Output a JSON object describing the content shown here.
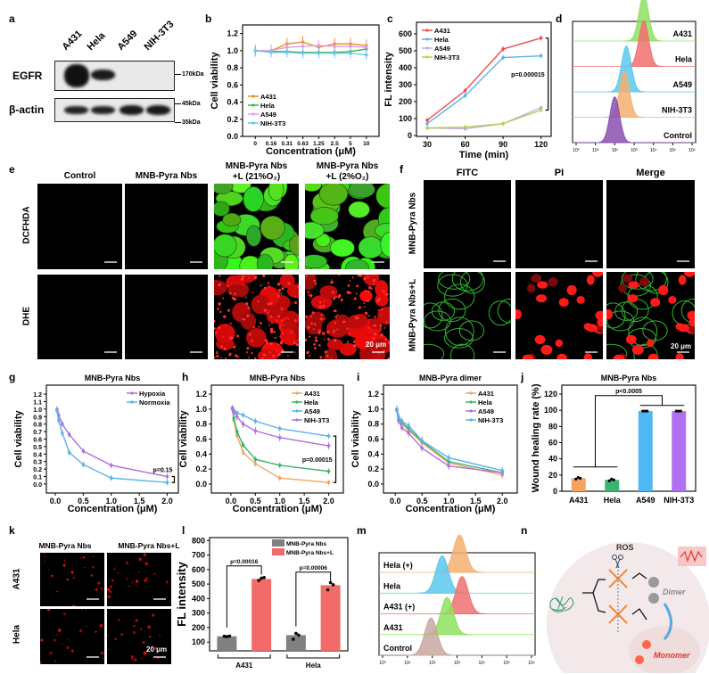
{
  "panel_labels": {
    "a": "a",
    "b": "b",
    "c": "c",
    "d": "d",
    "e": "e",
    "f": "f",
    "g": "g",
    "h": "h",
    "i": "i",
    "j": "j",
    "k": "k",
    "l": "l",
    "m": "m",
    "n": "n"
  },
  "blot": {
    "lanes": [
      "A431",
      "Hela",
      "A549",
      "NIH-3T3"
    ],
    "rows": [
      "EGFR",
      "β-actin"
    ],
    "markers": [
      "170kDa",
      "45kDa",
      "35kDa"
    ]
  },
  "ros_imaging": {
    "columns": [
      "Control",
      "MNB-Pyra Nbs",
      "MNB-Pyra Nbs\n+L (21%O₂)",
      "MNB-Pyra Nbs\n+L (2%O₂)"
    ],
    "rows": [
      "DCFHDA",
      "DHE"
    ],
    "scale_bar": "20 μm"
  },
  "membrane_imaging": {
    "columns": [
      "FITC",
      "PI",
      "Merge"
    ],
    "rows": [
      "MNB-Pyra Nbs",
      "MNB-Pyra Nbs+L"
    ],
    "scale_bar": "20 μm"
  },
  "cell_imaging": {
    "columns": [
      "MNB-Pyra Nbs",
      "MNB-Pyra Nbs+L"
    ],
    "rows": [
      "A431",
      "Hela"
    ],
    "scale_bar": "20 μm"
  },
  "schematic": {
    "ros": "ROS",
    "dimer": "Dimer",
    "monomer": "Monomer",
    "colors": {
      "ros": "#333333",
      "dimer": "#8a8a8a",
      "monomer": "#e03a2a"
    }
  },
  "chart_data": [
    {
      "panel": "b",
      "type": "line",
      "title": "",
      "xlabel": "Concentration (μM)",
      "ylabel": "Cell viability",
      "categories": [
        "0",
        "0.16",
        "0.31",
        "0.63",
        "1.25",
        "2.5",
        "5",
        "10"
      ],
      "ylim": [
        0,
        1.3
      ],
      "yticks": [
        0,
        0.2,
        0.4,
        0.6,
        0.8,
        1.0,
        1.2
      ],
      "ydec": 1,
      "legend": "bottom-left",
      "series": [
        {
          "name": "A431",
          "color": "#f08a24",
          "values": [
            1.0,
            1.0,
            1.08,
            1.1,
            1.04,
            1.08,
            1.08,
            1.06
          ],
          "err": 0.07
        },
        {
          "name": "Hela",
          "color": "#3cb44b",
          "values": [
            1.0,
            0.99,
            0.99,
            0.98,
            0.98,
            0.98,
            0.99,
            1.02
          ],
          "err": 0.04
        },
        {
          "name": "A549",
          "color": "#dda0e8",
          "values": [
            1.0,
            1.0,
            1.04,
            1.05,
            1.06,
            1.05,
            1.05,
            1.04
          ],
          "err": 0.06
        },
        {
          "name": "NIH-3T3",
          "color": "#6ec6ee",
          "values": [
            1.0,
            0.98,
            0.98,
            0.97,
            0.97,
            0.97,
            0.97,
            0.95
          ],
          "err": 0.06
        }
      ]
    },
    {
      "panel": "c",
      "type": "line",
      "title": "",
      "xlabel": "Time (min)",
      "ylabel": "FL intensity",
      "x": [
        30,
        60,
        90,
        120
      ],
      "xlim": [
        21.5,
        128
      ],
      "xticks": [
        30,
        60,
        90,
        120
      ],
      "ylim": [
        -5,
        668
      ],
      "yticks": [
        0,
        100,
        200,
        300,
        400,
        500,
        600
      ],
      "ydec": 0,
      "legend": "top-left",
      "series": [
        {
          "name": "A431",
          "color": "#e8504f",
          "values": [
            90,
            265,
            510,
            575
          ],
          "err": 15
        },
        {
          "name": "Hela",
          "color": "#5ab4e8",
          "values": [
            70,
            235,
            460,
            470
          ],
          "err": 15
        },
        {
          "name": "A549",
          "color": "#c8a8ec",
          "values": [
            45,
            40,
            70,
            165
          ],
          "err": 12
        },
        {
          "name": "NIH-3T3",
          "color": "#b5d24a",
          "values": [
            45,
            50,
            70,
            150
          ],
          "err": 12
        }
      ],
      "annotation": {
        "text": "p=0.000015",
        "between": [
          0,
          3
        ]
      }
    },
    {
      "panel": "d",
      "type": "histogram",
      "xlim_log10": [
        0,
        6
      ],
      "tracks": [
        {
          "name": "A431",
          "color": "#8fe060",
          "peak_log10": 3.5
        },
        {
          "name": "Hela",
          "color": "#f07070",
          "peak_log10": 3.5
        },
        {
          "name": "A549",
          "color": "#5cc8ee",
          "peak_log10": 2.6
        },
        {
          "name": "NIH-3T3",
          "color": "#f5b070",
          "peak_log10": 2.5
        },
        {
          "name": "Control",
          "color": "#8a50b0",
          "peak_log10": 2.0
        }
      ]
    },
    {
      "panel": "g",
      "type": "line",
      "title": "MNB-Pyra Nbs",
      "xlabel": "Concentration (μM)",
      "ylabel": "Cell viability",
      "x": [
        0.03,
        0.06,
        0.125,
        0.25,
        0.5,
        1,
        2
      ],
      "xlim": [
        -0.16,
        2.2
      ],
      "xticks": [
        0,
        0.5,
        1.0,
        1.5,
        2.0
      ],
      "ylim": [
        -0.12,
        1.32
      ],
      "yticks": [
        0,
        0.1,
        0.2,
        0.3,
        0.4,
        0.5,
        0.6,
        0.7,
        0.8,
        0.9,
        1.0,
        1.1,
        1.2
      ],
      "ydec": 1,
      "legend": "top-right",
      "series": [
        {
          "name": "Hypoxia",
          "color": "#b070e0",
          "values": [
            1.0,
            0.92,
            0.8,
            0.66,
            0.44,
            0.25,
            0.1
          ],
          "err": 0.04
        },
        {
          "name": "Normoxia",
          "color": "#5ab4e8",
          "values": [
            0.98,
            0.85,
            0.68,
            0.42,
            0.26,
            0.08,
            0.02
          ],
          "err": 0.04
        }
      ],
      "annotation": {
        "text": "p=0.15",
        "between": [
          0,
          1
        ]
      }
    },
    {
      "panel": "h",
      "type": "line",
      "title": "MNB-Pyra Nbs",
      "xlabel": "Concentration (μM)",
      "ylabel": "Cell viability",
      "x": [
        0.03,
        0.06,
        0.125,
        0.25,
        0.5,
        1,
        2
      ],
      "xlim": [
        -0.4,
        2.3
      ],
      "xticks": [
        0,
        0.5,
        1.0,
        1.5,
        2.0
      ],
      "ylim": [
        -0.12,
        1.32
      ],
      "yticks": [
        0,
        0.2,
        0.4,
        0.6,
        0.8,
        1.0,
        1.2
      ],
      "ydec": 1,
      "legend": "top-right",
      "series": [
        {
          "name": "A431",
          "color": "#f4a460",
          "values": [
            1.0,
            0.85,
            0.65,
            0.42,
            0.27,
            0.08,
            0.02
          ],
          "err": 0.04
        },
        {
          "name": "Hela",
          "color": "#3cb371",
          "values": [
            1.0,
            0.88,
            0.7,
            0.52,
            0.33,
            0.25,
            0.17
          ],
          "err": 0.04
        },
        {
          "name": "A549",
          "color": "#5ab4e8",
          "values": [
            1.02,
            0.98,
            0.95,
            0.92,
            0.84,
            0.74,
            0.64
          ],
          "err": 0.04
        },
        {
          "name": "NIH-3T3",
          "color": "#b070e0",
          "values": [
            1.0,
            0.97,
            0.9,
            0.8,
            0.71,
            0.62,
            0.51
          ],
          "err": 0.05
        }
      ],
      "annotation": {
        "text": "p=0.00015",
        "between": [
          2,
          0
        ]
      }
    },
    {
      "panel": "i",
      "type": "line",
      "title": "MNB-Pyra dimer",
      "xlabel": "Concentration (μM)",
      "ylabel": "Cell viability",
      "x": [
        0.03,
        0.06,
        0.125,
        0.25,
        0.5,
        1,
        2
      ],
      "xlim": [
        -0.22,
        2.28
      ],
      "xticks": [
        0,
        0.5,
        1.0,
        1.5,
        2.0
      ],
      "ylim": [
        -0.12,
        1.32
      ],
      "yticks": [
        0,
        0.2,
        0.4,
        0.6,
        0.8,
        1.0,
        1.2
      ],
      "ydec": 1,
      "legend": "top-right",
      "series": [
        {
          "name": "A431",
          "color": "#f4a460",
          "values": [
            1.0,
            0.88,
            0.8,
            0.72,
            0.55,
            0.28,
            0.12
          ],
          "err": 0.05
        },
        {
          "name": "Hela",
          "color": "#3cb371",
          "values": [
            1.0,
            0.9,
            0.82,
            0.74,
            0.57,
            0.3,
            0.15
          ],
          "err": 0.05
        },
        {
          "name": "A549",
          "color": "#b070e0",
          "values": [
            0.98,
            0.85,
            0.75,
            0.68,
            0.48,
            0.24,
            0.15
          ],
          "err": 0.05
        },
        {
          "name": "NIH-3T3",
          "color": "#5ab4e8",
          "values": [
            1.0,
            0.9,
            0.84,
            0.78,
            0.58,
            0.35,
            0.18
          ],
          "err": 0.05
        }
      ]
    },
    {
      "panel": "j",
      "type": "bar",
      "title": "MNB-Pyra Nbs",
      "xlabel": "",
      "ylabel": "Wound healing rate (%)",
      "categories": [
        "A431",
        "Hela",
        "A549",
        "NIH-3T3"
      ],
      "values": [
        16,
        14,
        99,
        99
      ],
      "points": [
        [
          15,
          17,
          16
        ],
        [
          13,
          15,
          14
        ],
        [
          99,
          99,
          99
        ],
        [
          99,
          99,
          99
        ]
      ],
      "colors": [
        "#f4a460",
        "#3cb371",
        "#4fb8f5",
        "#b070f0"
      ],
      "ylim": [
        0,
        131
      ],
      "yticks": [
        0,
        20,
        40,
        60,
        80,
        100,
        120
      ],
      "ydec": 0,
      "annotation": {
        "text": "p<0.0005"
      }
    },
    {
      "panel": "l",
      "type": "bar",
      "title": "",
      "xlabel": "",
      "ylabel": "FL intensity",
      "categories": [
        "A431",
        "Hela"
      ],
      "series": [
        {
          "name": "MNB-Pyra Nbs",
          "color": "#808080",
          "values": [
            140,
            148
          ],
          "points": [
            [
              140,
              138,
              142
            ],
            [
              120,
              160,
              148
            ]
          ]
        },
        {
          "name": "MNB-Pyra Nbs+L",
          "color": "#f26b6b",
          "values": [
            535,
            492
          ],
          "points": [
            [
              525,
              540,
              545
            ],
            [
              460,
              510,
              495
            ]
          ]
        }
      ],
      "ylim": [
        40,
        820
      ],
      "yticks": [
        100,
        200,
        300,
        400,
        500,
        600,
        700,
        800
      ],
      "ydec": 0,
      "legend": "top-right",
      "annotations": [
        "p=0.00016",
        "p=0.00006"
      ]
    },
    {
      "panel": "m",
      "type": "histogram",
      "xlim_log10": [
        0,
        6
      ],
      "tracks": [
        {
          "name": "Hela (+)",
          "color": "#f5b070",
          "peak_log10": 3.1
        },
        {
          "name": "Hela",
          "color": "#5cc8ee",
          "peak_log10": 2.4
        },
        {
          "name": "A431 (+)",
          "color": "#f07070",
          "peak_log10": 3.2
        },
        {
          "name": "A431",
          "color": "#8fe060",
          "peak_log10": 2.6
        },
        {
          "name": "Control",
          "color": "#c8a8a0",
          "peak_log10": 1.95
        }
      ]
    }
  ]
}
